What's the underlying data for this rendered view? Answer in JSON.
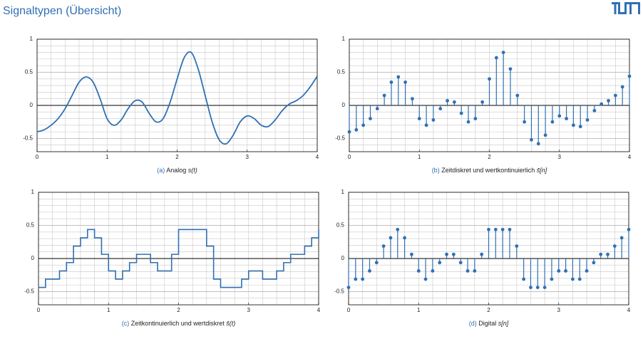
{
  "header": {
    "title": "Signaltypen (Übersicht)"
  },
  "chart_data": [
    {
      "type": "line",
      "caption": {
        "label": "(a)",
        "text": "Analog",
        "math": "s(t)"
      },
      "color": "#3070b3",
      "x": [
        0,
        0.1,
        0.2,
        0.3,
        0.4,
        0.5,
        0.6,
        0.7,
        0.8,
        0.9,
        1,
        1.1,
        1.2,
        1.3,
        1.4,
        1.5,
        1.6,
        1.7,
        1.8,
        1.9,
        2,
        2.1,
        2.2,
        2.3,
        2.4,
        2.5,
        2.6,
        2.7,
        2.8,
        2.9,
        3,
        3.1,
        3.2,
        3.3,
        3.4,
        3.5,
        3.6,
        3.7,
        3.8,
        3.9,
        4
      ],
      "values": [
        -0.4,
        -0.37,
        -0.3,
        -0.2,
        -0.05,
        0.15,
        0.35,
        0.43,
        0.35,
        0.1,
        -0.2,
        -0.3,
        -0.22,
        -0.05,
        0.07,
        0.05,
        -0.12,
        -0.25,
        -0.2,
        0.05,
        0.4,
        0.72,
        0.8,
        0.55,
        0.15,
        -0.25,
        -0.52,
        -0.58,
        -0.45,
        -0.25,
        -0.16,
        -0.2,
        -0.3,
        -0.32,
        -0.22,
        -0.08,
        0.02,
        0.07,
        0.15,
        0.28,
        0.44
      ],
      "xlim": [
        0,
        4
      ],
      "ylim": [
        -0.7,
        1
      ],
      "xticks": [
        0,
        1,
        2,
        3,
        4
      ],
      "yticks": [
        -0.5,
        0,
        0.5,
        1
      ],
      "grid": true,
      "minor_grid": {
        "x": 0.2,
        "y": 0.1
      }
    },
    {
      "type": "stem",
      "caption": {
        "label": "(b)",
        "text": "Zeitdiskret und wertkontinuierlich",
        "math": "s̄[n]"
      },
      "color": "#3070b3",
      "x": [
        0,
        0.1,
        0.2,
        0.3,
        0.4,
        0.5,
        0.6,
        0.7,
        0.8,
        0.9,
        1,
        1.1,
        1.2,
        1.3,
        1.4,
        1.5,
        1.6,
        1.7,
        1.8,
        1.9,
        2,
        2.1,
        2.2,
        2.3,
        2.4,
        2.5,
        2.6,
        2.7,
        2.8,
        2.9,
        3,
        3.1,
        3.2,
        3.3,
        3.4,
        3.5,
        3.6,
        3.7,
        3.8,
        3.9,
        4
      ],
      "values": [
        -0.4,
        -0.37,
        -0.3,
        -0.2,
        -0.05,
        0.15,
        0.35,
        0.43,
        0.35,
        0.1,
        -0.2,
        -0.3,
        -0.22,
        -0.05,
        0.07,
        0.05,
        -0.12,
        -0.25,
        -0.2,
        0.05,
        0.4,
        0.72,
        0.8,
        0.55,
        0.15,
        -0.25,
        -0.52,
        -0.58,
        -0.45,
        -0.25,
        -0.16,
        -0.2,
        -0.3,
        -0.32,
        -0.22,
        -0.08,
        0.02,
        0.07,
        0.15,
        0.28,
        0.44
      ],
      "xlim": [
        0,
        4
      ],
      "ylim": [
        -0.7,
        1
      ],
      "xticks": [
        0,
        1,
        2,
        3,
        4
      ],
      "yticks": [
        -0.5,
        0,
        0.5,
        1
      ],
      "grid": true,
      "minor_grid": {
        "x": 0.2,
        "y": 0.1
      }
    },
    {
      "type": "step",
      "caption": {
        "label": "(c)",
        "text": "Zeitkontinuierlich und wertdiskret",
        "math": "s̄(t)"
      },
      "color": "#3070b3",
      "x": [
        0,
        0.1,
        0.2,
        0.3,
        0.4,
        0.5,
        0.6,
        0.7,
        0.8,
        0.9,
        1,
        1.1,
        1.2,
        1.3,
        1.4,
        1.5,
        1.6,
        1.7,
        1.8,
        1.9,
        2,
        2.1,
        2.2,
        2.3,
        2.4,
        2.5,
        2.6,
        2.7,
        2.8,
        2.9,
        3,
        3.1,
        3.2,
        3.3,
        3.4,
        3.5,
        3.6,
        3.7,
        3.8,
        3.9,
        4
      ],
      "values": [
        -0.4375,
        -0.3125,
        -0.3125,
        -0.1875,
        -0.0625,
        0.1875,
        0.3125,
        0.4375,
        0.3125,
        0.0625,
        -0.1875,
        -0.3125,
        -0.1875,
        -0.0625,
        0.0625,
        0.0625,
        -0.0625,
        -0.1875,
        -0.1875,
        0.0625,
        0.4375,
        0.4375,
        0.4375,
        0.4375,
        0.1875,
        -0.3125,
        -0.4375,
        -0.4375,
        -0.4375,
        -0.3125,
        -0.1875,
        -0.1875,
        -0.3125,
        -0.3125,
        -0.1875,
        -0.0625,
        0.0625,
        0.0625,
        0.1875,
        0.3125,
        0.4375
      ],
      "xlim": [
        0,
        4
      ],
      "ylim": [
        -0.7,
        1
      ],
      "xticks": [
        0,
        1,
        2,
        3,
        4
      ],
      "yticks": [
        -0.5,
        0,
        0.5,
        1
      ],
      "grid": true,
      "minor_grid": {
        "x": 0.2,
        "y": 0.1
      }
    },
    {
      "type": "stem",
      "caption": {
        "label": "(d)",
        "text": "Digital",
        "math": "s[n]"
      },
      "color": "#3070b3",
      "x": [
        0,
        0.1,
        0.2,
        0.3,
        0.4,
        0.5,
        0.6,
        0.7,
        0.8,
        0.9,
        1,
        1.1,
        1.2,
        1.3,
        1.4,
        1.5,
        1.6,
        1.7,
        1.8,
        1.9,
        2,
        2.1,
        2.2,
        2.3,
        2.4,
        2.5,
        2.6,
        2.7,
        2.8,
        2.9,
        3,
        3.1,
        3.2,
        3.3,
        3.4,
        3.5,
        3.6,
        3.7,
        3.8,
        3.9,
        4
      ],
      "values": [
        -0.4375,
        -0.3125,
        -0.3125,
        -0.1875,
        -0.0625,
        0.1875,
        0.3125,
        0.4375,
        0.3125,
        0.0625,
        -0.1875,
        -0.3125,
        -0.1875,
        -0.0625,
        0.0625,
        0.0625,
        -0.0625,
        -0.1875,
        -0.1875,
        0.0625,
        0.4375,
        0.4375,
        0.4375,
        0.4375,
        0.1875,
        -0.3125,
        -0.4375,
        -0.4375,
        -0.4375,
        -0.3125,
        -0.1875,
        -0.1875,
        -0.3125,
        -0.3125,
        -0.1875,
        -0.0625,
        0.0625,
        0.0625,
        0.1875,
        0.3125,
        0.4375
      ],
      "xlim": [
        0,
        4
      ],
      "ylim": [
        -0.7,
        1
      ],
      "xticks": [
        0,
        1,
        2,
        3,
        4
      ],
      "yticks": [
        -0.5,
        0,
        0.5,
        1
      ],
      "grid": true,
      "minor_grid": {
        "x": 0.2,
        "y": 0.1
      }
    }
  ]
}
